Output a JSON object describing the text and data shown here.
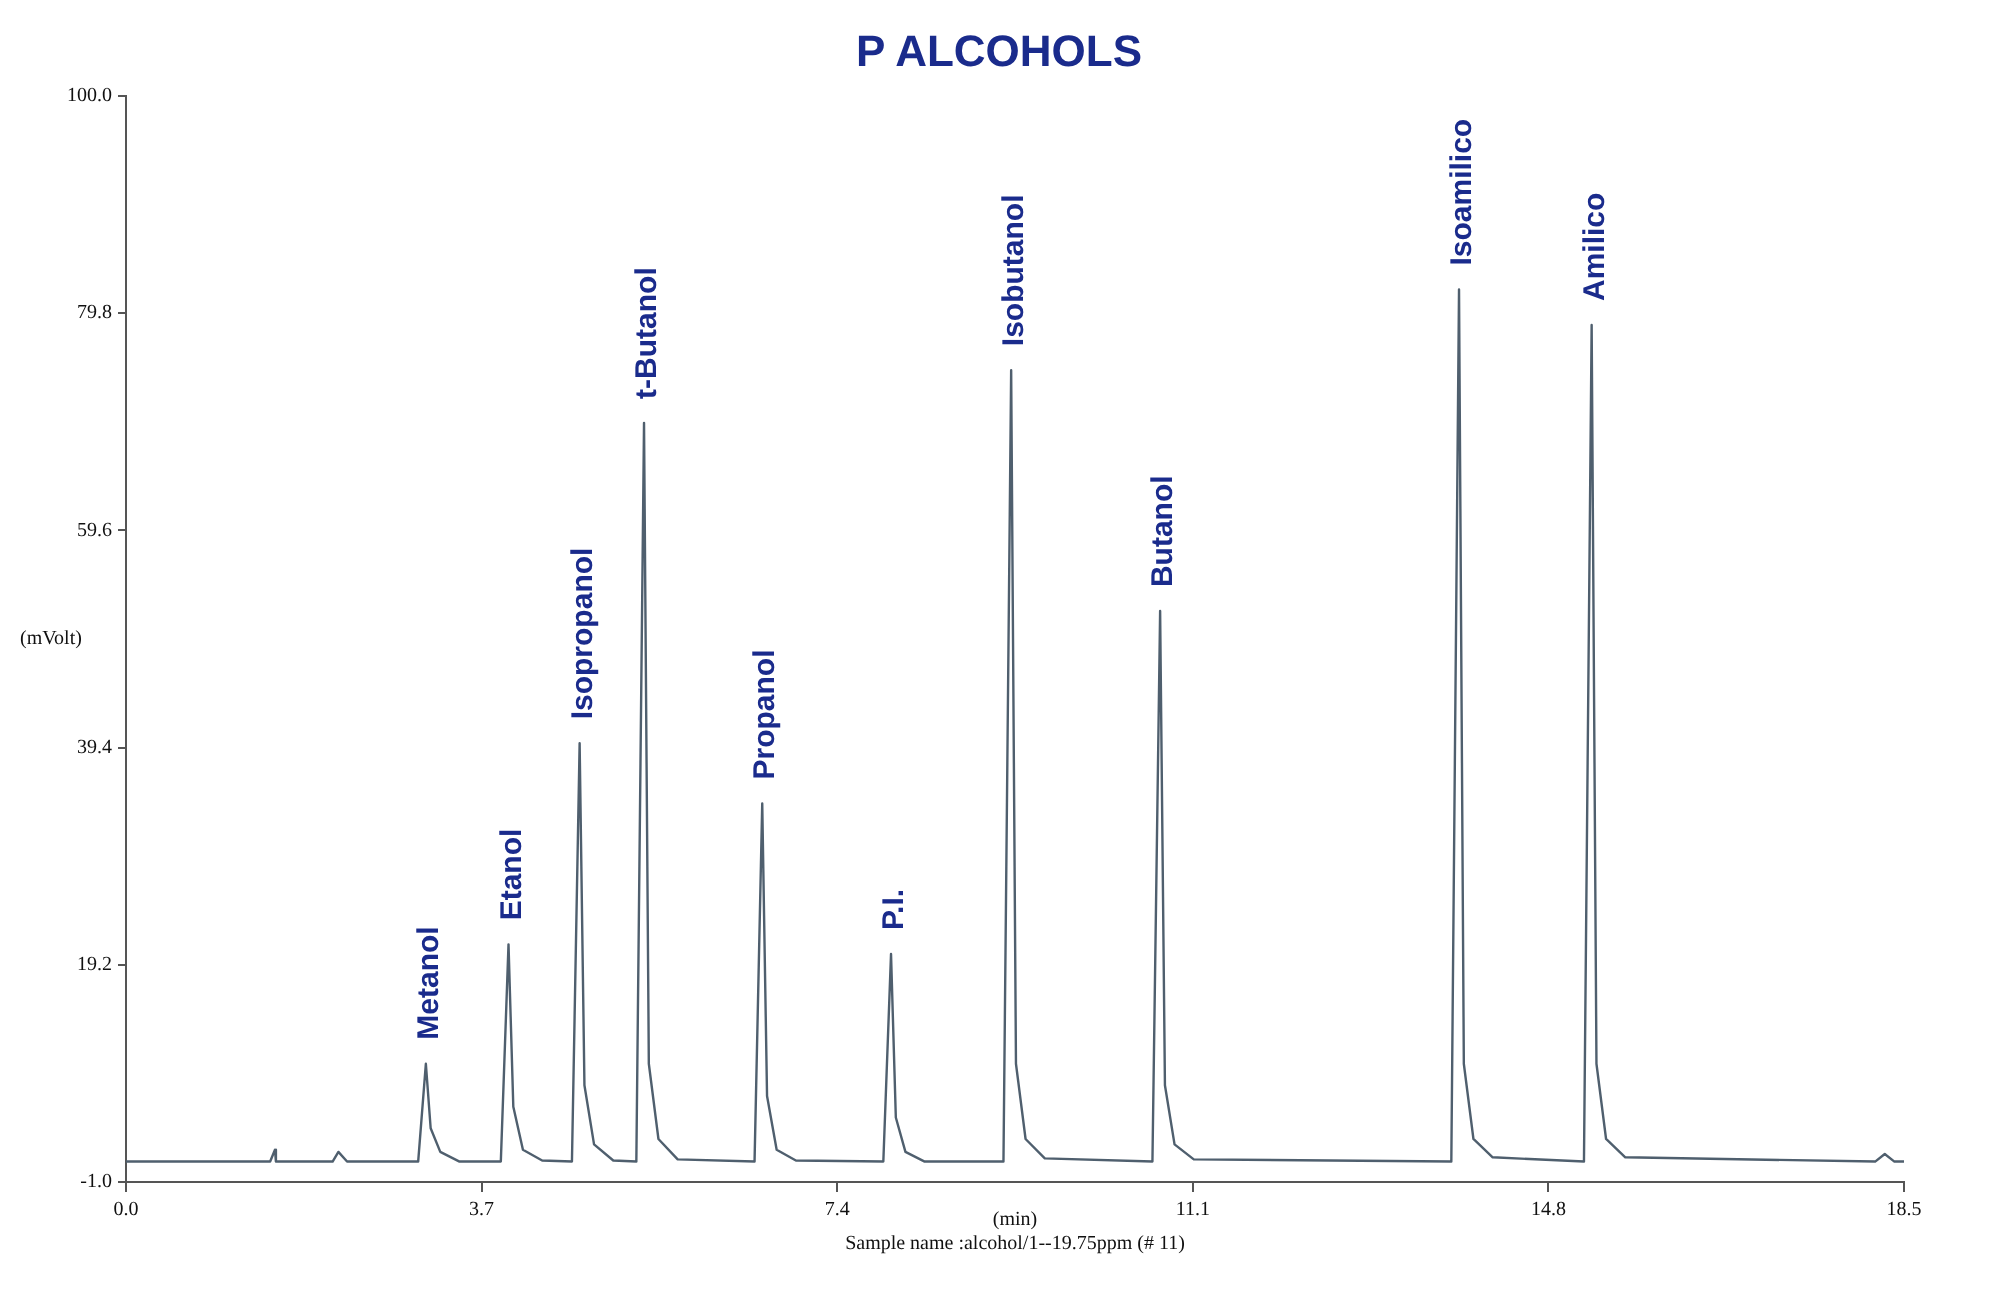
{
  "chart_data": {
    "type": "line",
    "title": "P ALCOHOLS",
    "xlabel": "(min)",
    "ylabel": "(mVolt)",
    "series": [
      {
        "color": "#4f5f6e",
        "x": [
          0,
          1.5,
          1.55,
          1.56,
          1.6,
          2.15,
          2.21,
          2.3,
          3.04,
          3.12,
          3.17,
          3.27,
          3.47,
          3.9,
          3.98,
          4.03,
          4.13,
          4.33,
          4.64,
          4.72,
          4.77,
          4.87,
          5.07,
          5.31,
          5.39,
          5.44,
          5.54,
          5.74,
          6.54,
          6.62,
          6.67,
          6.77,
          6.97,
          7.88,
          7.96,
          8.01,
          8.11,
          8.31,
          9.13,
          9.21,
          9.26,
          9.36,
          9.56,
          10.68,
          10.76,
          10.81,
          10.91,
          11.11,
          13.79,
          13.87,
          13.92,
          14.02,
          14.22,
          15.17,
          15.25,
          15.3,
          15.4,
          15.6,
          18.2,
          18.3,
          18.4,
          18.5
        ],
        "values": [
          0.9,
          0.9,
          2.0,
          0.9,
          0.9,
          0.9,
          1.8,
          0.9,
          0.9,
          10.0,
          4.0,
          1.8,
          0.9,
          0.9,
          21.1,
          6.0,
          2.0,
          1.0,
          0.9,
          39.8,
          8.0,
          2.5,
          1.0,
          0.9,
          69.6,
          10.0,
          3.0,
          1.1,
          0.9,
          34.2,
          7.0,
          2.0,
          1.0,
          0.9,
          20.2,
          5.0,
          1.8,
          0.9,
          0.9,
          74.5,
          10.0,
          3.0,
          1.2,
          0.9,
          52.1,
          8.0,
          2.5,
          1.1,
          0.9,
          82.0,
          10.0,
          3.0,
          1.3,
          0.9,
          78.7,
          10.0,
          3.0,
          1.3,
          0.9,
          1.6,
          0.9,
          0.9
        ]
      }
    ],
    "xlim": [
      0,
      18.5
    ],
    "xticks": [
      {
        "value": 0,
        "label": "0.0"
      },
      3.7,
      7.4,
      11.1,
      14.8,
      18.5
    ],
    "ylim": [
      -1,
      100
    ],
    "yticks": [
      {
        "value": -1,
        "label": "-1.0"
      },
      19.2,
      39.4,
      59.6,
      79.8,
      {
        "value": 100,
        "label": "100.0"
      }
    ],
    "grid": false,
    "legend": false,
    "marker": "none",
    "line_style": "solid",
    "annotations": [
      {
        "text": "Metanol",
        "x": 3.12,
        "y": 10.0
      },
      {
        "text": "Etanol",
        "x": 3.98,
        "y": 21.1
      },
      {
        "text": "Isopropanol",
        "x": 4.72,
        "y": 39.8
      },
      {
        "text": "t-Butanol",
        "x": 5.39,
        "y": 69.6
      },
      {
        "text": "Propanol",
        "x": 6.62,
        "y": 34.2
      },
      {
        "text": "P.I.",
        "x": 7.96,
        "y": 20.2
      },
      {
        "text": "Isobutanol",
        "x": 9.21,
        "y": 74.5
      },
      {
        "text": "Butanol",
        "x": 10.76,
        "y": 52.1
      },
      {
        "text": "Isoamilico",
        "x": 13.87,
        "y": 82.0
      },
      {
        "text": "Amilico",
        "x": 15.25,
        "y": 78.7
      },
      "Sample name :alcohol/1--19.75ppm (# 11)"
    ]
  }
}
